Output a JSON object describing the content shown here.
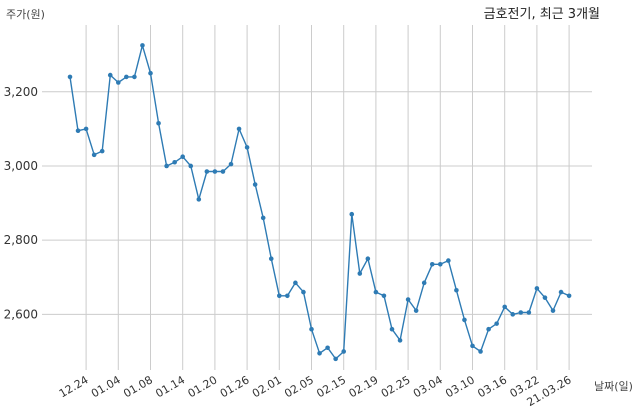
{
  "chart_data": {
    "type": "line",
    "title": "금호전기, 최근 3개월",
    "ylabel": "주가(원)",
    "xlabel": "날짜(일)",
    "ylim": [
      2450,
      3380
    ],
    "yticks": [
      2600,
      2800,
      3000,
      3200
    ],
    "ytick_labels": [
      "2,600",
      "2,800",
      "3,000",
      "3,200"
    ],
    "xticks": [
      {
        "index": 2,
        "label": "12.24"
      },
      {
        "index": 6,
        "label": "01.04"
      },
      {
        "index": 10,
        "label": "01.08"
      },
      {
        "index": 14,
        "label": "01.14"
      },
      {
        "index": 18,
        "label": "01.20"
      },
      {
        "index": 22,
        "label": "01.26"
      },
      {
        "index": 26,
        "label": "02.01"
      },
      {
        "index": 30,
        "label": "02.05"
      },
      {
        "index": 34,
        "label": "02.15"
      },
      {
        "index": 38,
        "label": "02.19"
      },
      {
        "index": 42,
        "label": "02.25"
      },
      {
        "index": 46,
        "label": "03.04"
      },
      {
        "index": 50,
        "label": "03.10"
      },
      {
        "index": 54,
        "label": "03.16"
      },
      {
        "index": 58,
        "label": "03.22"
      },
      {
        "index": 62,
        "label": "21.03.26"
      }
    ],
    "grid": true,
    "color": "#2e7bb4",
    "values": [
      3240,
      3095,
      3100,
      3030,
      3040,
      3245,
      3225,
      3240,
      3240,
      3325,
      3250,
      3115,
      3000,
      3010,
      3025,
      3000,
      2910,
      2985,
      2985,
      2985,
      3005,
      3100,
      3050,
      2950,
      2860,
      2750,
      2650,
      2650,
      2685,
      2660,
      2560,
      2495,
      2510,
      2480,
      2500,
      2870,
      2710,
      2750,
      2660,
      2650,
      2560,
      2530,
      2640,
      2610,
      2685,
      2735,
      2735,
      2745,
      2665,
      2585,
      2515,
      2500,
      2560,
      2575,
      2620,
      2600,
      2605,
      2605,
      2670,
      2645,
      2610,
      2660,
      2650
    ]
  }
}
